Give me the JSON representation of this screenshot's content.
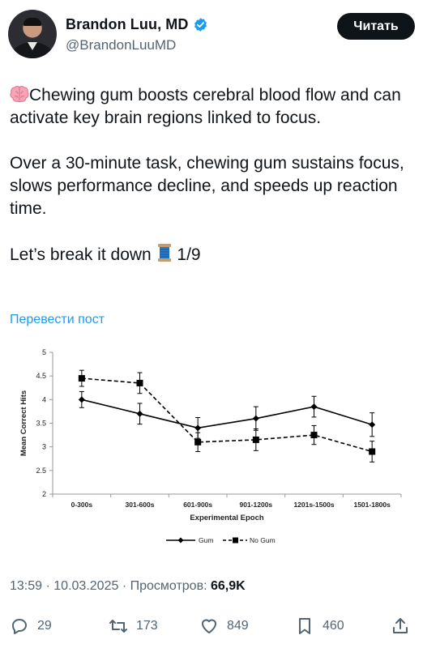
{
  "author": {
    "name": "Brandon Luu, MD",
    "handle": "@BrandonLuuMD"
  },
  "follow_label": "Читать",
  "tweet": {
    "line1": "Chewing gum boosts cerebral blood flow and can activate key brain regions linked to focus.",
    "line2": "Over a 30-minute task, chewing gum sustains focus, slows performance decline, and speeds up reaction time.",
    "line3_text": "Let’s break it down ",
    "line3_count": " 1/9"
  },
  "translate_label": "Перевести пост",
  "chart_data": {
    "type": "line",
    "categories": [
      "0-300s",
      "301-600s",
      "601-900s",
      "901-1200s",
      "1201s-1500s",
      "1501-1800s"
    ],
    "series": [
      {
        "name": "Gum",
        "values": [
          4.0,
          3.7,
          3.4,
          3.6,
          3.85,
          3.47
        ],
        "errors": [
          0.17,
          0.22,
          0.22,
          0.25,
          0.22,
          0.25
        ],
        "style": "solid",
        "marker": "diamond"
      },
      {
        "name": "No Gum",
        "values": [
          4.45,
          4.35,
          3.1,
          3.15,
          3.25,
          2.9
        ],
        "errors": [
          0.17,
          0.22,
          0.2,
          0.23,
          0.2,
          0.22
        ],
        "style": "dashed",
        "marker": "square"
      }
    ],
    "xlabel": "Experimental Epoch",
    "ylabel": "Mean Correct Hits",
    "ylim": [
      2,
      5
    ],
    "yticks": [
      "2",
      "2.5",
      "3",
      "3.5",
      "4",
      "4.5",
      "5"
    ],
    "grid": false,
    "legend_position": "bottom-center"
  },
  "meta": {
    "time": "13:59",
    "date": "10.03.2025",
    "views_label": "Просмотров:",
    "views_value": "66,9K",
    "sep": "·"
  },
  "actions": {
    "replies": "29",
    "reposts": "173",
    "likes": "849",
    "bookmarks": "460"
  },
  "colors": {
    "accent": "#1d9bf0",
    "text": "#0f1419",
    "secondary": "#536471"
  }
}
